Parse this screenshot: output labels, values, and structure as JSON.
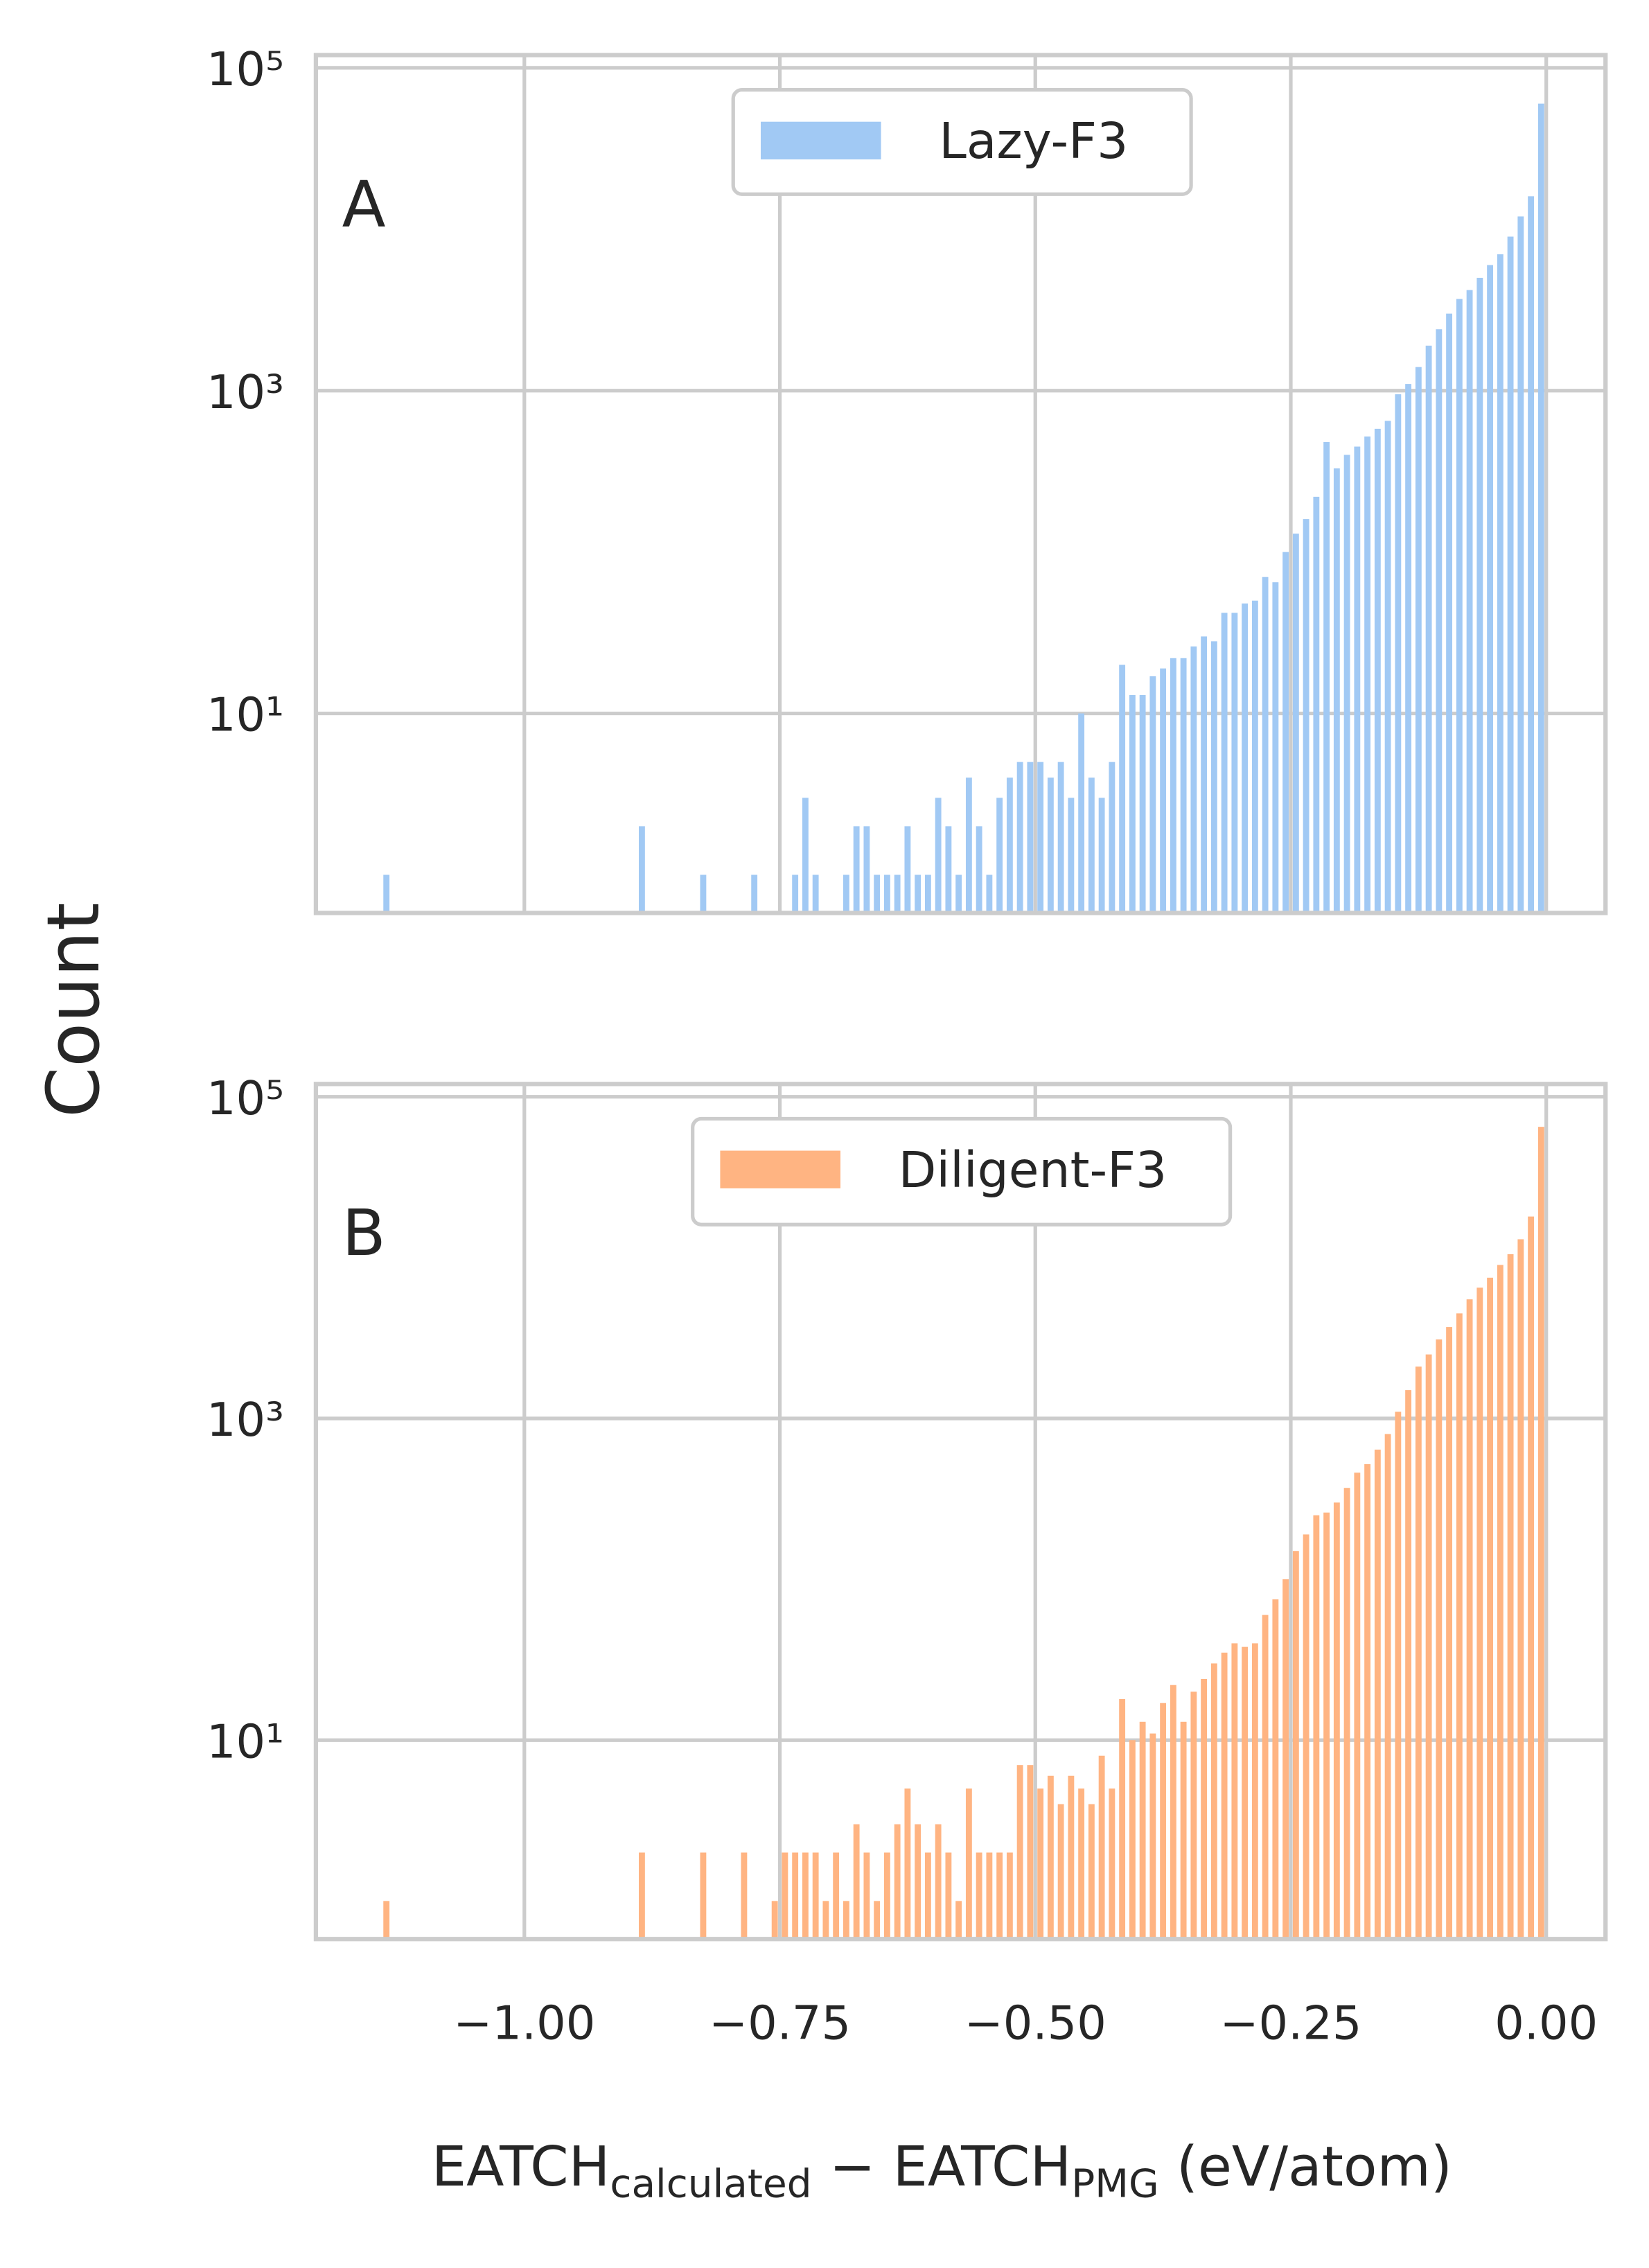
{
  "chart_data": [
    {
      "type": "histogram",
      "letter": "A",
      "series": [
        {
          "name": "Lazy-F3",
          "color": "#a1c9f4",
          "values": [
            0,
            1,
            0,
            0,
            0,
            0,
            0,
            0,
            0,
            0,
            0,
            0,
            0,
            0,
            0,
            0,
            0,
            0,
            0,
            0,
            0,
            0,
            0,
            0,
            0,
            0,
            2,
            0,
            0,
            0,
            0,
            0,
            1,
            0,
            0,
            0,
            0,
            1,
            0,
            0,
            0,
            1,
            3,
            1,
            0,
            0,
            1,
            2,
            2,
            1,
            1,
            1,
            2,
            1,
            1,
            3,
            2,
            1,
            4,
            2,
            1,
            3,
            4,
            5,
            5,
            5,
            4,
            5,
            3,
            10,
            4,
            3,
            5,
            20,
            13,
            13,
            17,
            19,
            22,
            22,
            26,
            30,
            28,
            42,
            42,
            48,
            50,
            70,
            65,
            100,
            130,
            160,
            220,
            480,
            330,
            400,
            450,
            520,
            580,
            650,
            950,
            1100,
            1400,
            1900,
            2400,
            3000,
            3700,
            4200,
            5000,
            6000,
            7000,
            9000,
            12000,
            16000,
            60000
          ]
        }
      ],
      "ylim": [
        0.58,
        120000
      ],
      "log_y": true,
      "grid": true,
      "yticks": [
        {
          "value": 10,
          "label": "10¹"
        },
        {
          "value": 1000,
          "label": "10³"
        },
        {
          "value": 100000,
          "label": "10⁵"
        }
      ]
    },
    {
      "type": "histogram",
      "letter": "B",
      "series": [
        {
          "name": "Diligent-F3",
          "color": "#ffb482",
          "values": [
            0,
            1,
            0,
            0,
            0,
            0,
            0,
            0,
            0,
            0,
            0,
            0,
            0,
            0,
            0,
            0,
            0,
            0,
            0,
            0,
            0,
            0,
            0,
            0,
            0,
            0,
            2,
            0,
            0,
            0,
            0,
            0,
            2,
            0,
            0,
            0,
            2,
            0,
            0,
            1,
            2,
            2,
            2,
            2,
            1,
            2,
            1,
            3,
            2,
            1,
            2,
            3,
            5,
            3,
            2,
            3,
            2,
            1,
            5,
            2,
            2,
            2,
            2,
            7,
            7,
            5,
            6,
            4,
            6,
            5,
            4,
            8,
            5,
            18,
            10,
            13,
            11,
            17,
            22,
            13,
            20,
            24,
            30,
            35,
            40,
            38,
            40,
            60,
            75,
            100,
            150,
            190,
            250,
            260,
            300,
            370,
            460,
            520,
            640,
            800,
            1100,
            1500,
            2100,
            2500,
            3100,
            3700,
            4500,
            5500,
            6500,
            7500,
            9000,
            10500,
            13000,
            18000,
            65000
          ]
        }
      ],
      "ylim": [
        0.58,
        120000
      ],
      "log_y": true,
      "grid": true,
      "yticks": [
        {
          "value": 10,
          "label": "10¹"
        },
        {
          "value": 1000,
          "label": "10³"
        },
        {
          "value": 100000,
          "label": "10⁵"
        }
      ]
    }
  ],
  "shared_x": {
    "bins": [
      -1.15,
      -1.14,
      -1.13,
      -1.12,
      -1.11,
      -1.1,
      -1.09,
      -1.08,
      -1.07,
      -1.06,
      -1.05,
      -1.04,
      -1.03,
      -1.02,
      -1.01,
      -1,
      -0.99,
      -0.98,
      -0.97,
      -0.96,
      -0.95,
      -0.94,
      -0.93,
      -0.92,
      -0.91,
      -0.9,
      -0.89,
      -0.88,
      -0.87,
      -0.86,
      -0.85,
      -0.84,
      -0.83,
      -0.82,
      -0.81,
      -0.8,
      -0.79,
      -0.78,
      -0.77,
      -0.76,
      -0.75,
      -0.74,
      -0.73,
      -0.72,
      -0.71,
      -0.7,
      -0.69,
      -0.68,
      -0.67,
      -0.66,
      -0.65,
      -0.64,
      -0.63,
      -0.62,
      -0.61,
      -0.6,
      -0.59,
      -0.58,
      -0.57,
      -0.56,
      -0.55,
      -0.54,
      -0.53,
      -0.52,
      -0.51,
      -0.5,
      -0.49,
      -0.48,
      -0.47,
      -0.46,
      -0.45,
      -0.44,
      -0.43,
      -0.42,
      -0.41,
      -0.4,
      -0.39,
      -0.38,
      -0.37,
      -0.36,
      -0.35,
      -0.34,
      -0.33,
      -0.32,
      -0.31,
      -0.3,
      -0.29,
      -0.28,
      -0.27,
      -0.26,
      -0.25,
      -0.24,
      -0.23,
      -0.22,
      -0.21,
      -0.2,
      -0.19,
      -0.18,
      -0.17,
      -0.16,
      -0.15,
      -0.14,
      -0.13,
      -0.12,
      -0.11,
      -0.1,
      -0.09,
      -0.08,
      -0.07,
      -0.06,
      -0.05,
      -0.04,
      -0.03,
      -0.02,
      -0.01,
      0
    ],
    "xlim": [
      -1.204,
      0.058
    ],
    "xticks": [
      {
        "value": -1,
        "label": "−1.00"
      },
      {
        "value": -0.75,
        "label": "−0.75"
      },
      {
        "value": -0.5,
        "label": "−0.50"
      },
      {
        "value": -0.25,
        "label": "−0.25"
      },
      {
        "value": 0,
        "label": "0.00"
      }
    ],
    "xlabel": [
      "EATCH",
      "calculated",
      " − EATCH",
      "PMG",
      " (eV/atom)"
    ]
  },
  "ylabel": "Count"
}
